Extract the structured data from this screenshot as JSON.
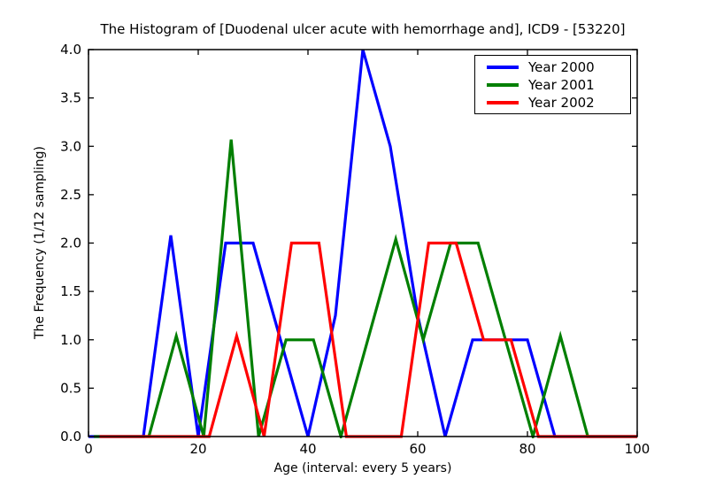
{
  "title": "The Histogram of [Duodenal ulcer acute with hemorrhage and], ICD9 - [53220]",
  "chart_data": {
    "type": "line",
    "title": "The Histogram of [Duodenal ulcer acute with hemorrhage and], ICD9 - [53220]",
    "xlabel": "Age (interval: every 5 years)",
    "ylabel": "The Frequency (1/12 sampling)",
    "xlim": [
      0,
      100
    ],
    "ylim": [
      0,
      4.0
    ],
    "grid": false,
    "legend_position": "upper right",
    "x_ticks": [
      0,
      20,
      40,
      60,
      80,
      100
    ],
    "x_tick_labels": [
      "0",
      "20",
      "40",
      "60",
      "80",
      "100"
    ],
    "y_ticks": [
      0,
      0.5,
      1.0,
      1.5,
      2.0,
      2.5,
      3.0,
      3.5,
      4.0
    ],
    "y_tick_labels": [
      "0.0",
      "0.5",
      "1.0",
      "1.5",
      "2.0",
      "2.5",
      "3.0",
      "3.5",
      "4.0"
    ],
    "categories": [
      0,
      5,
      10,
      15,
      20,
      25,
      30,
      35,
      40,
      45,
      50,
      55,
      60,
      65,
      70,
      75,
      80,
      85,
      90,
      95,
      100
    ],
    "series": [
      {
        "name": "Year 2000",
        "color": "#0000ff",
        "x_offset": 0,
        "values": [
          0,
          0,
          0,
          2.08,
          0,
          2.0,
          2.0,
          1.0,
          0,
          1.25,
          4.0,
          3.0,
          1.25,
          0,
          1.0,
          1.0,
          1.0,
          0,
          0,
          0,
          0
        ]
      },
      {
        "name": "Year 2001",
        "color": "#007f00",
        "x_offset": 1,
        "values": [
          0,
          0,
          0,
          1.04,
          0,
          3.07,
          0,
          1.0,
          1.0,
          0,
          1.02,
          2.04,
          1.0,
          2.0,
          2.0,
          1.0,
          0,
          1.04,
          0,
          0,
          0
        ]
      },
      {
        "name": "Year 2002",
        "color": "#ff0000",
        "x_offset": 2,
        "values": [
          0,
          0,
          0,
          0,
          0,
          1.04,
          0,
          2.0,
          2.0,
          0,
          0,
          0,
          2.0,
          2.0,
          1.0,
          1.0,
          0,
          0,
          0,
          0,
          0
        ]
      }
    ]
  }
}
